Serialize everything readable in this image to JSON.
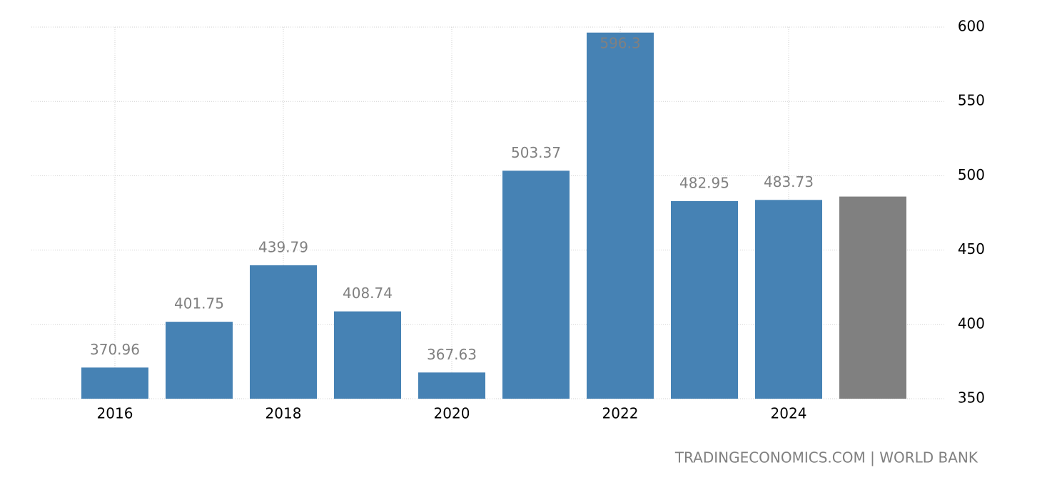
{
  "chart_data": {
    "type": "bar",
    "categories": [
      "2016",
      null,
      "2018",
      null,
      "2020",
      null,
      "2022",
      null,
      "2024",
      null
    ],
    "values": [
      370.96,
      401.75,
      439.79,
      408.74,
      367.63,
      503.37,
      596.3,
      482.95,
      483.73,
      486
    ],
    "value_labels": [
      "370.96",
      "401.75",
      "439.79",
      "408.74",
      "367.63",
      "503.37",
      "596.3",
      "482.95",
      "483.73",
      null
    ],
    "colors": [
      "#4682b4",
      "#4682b4",
      "#4682b4",
      "#4682b4",
      "#4682b4",
      "#4682b4",
      "#4682b4",
      "#4682b4",
      "#4682b4",
      "#808080"
    ],
    "ylim": [
      350,
      600
    ],
    "yticks": [
      350,
      400,
      450,
      500,
      550,
      600
    ],
    "grid": true,
    "source": "TRADINGECONOMICS.COM | WORLD BANK"
  }
}
